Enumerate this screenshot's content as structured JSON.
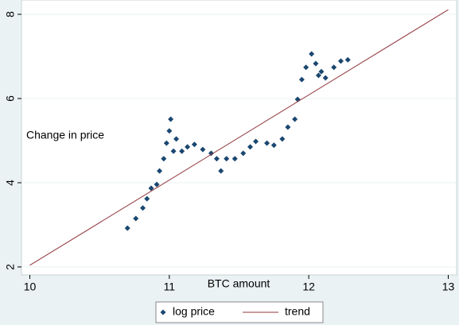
{
  "chart_data": {
    "type": "scatter",
    "x_label": "BTC amount",
    "y_label": "Change in price",
    "xlim": [
      9.94,
      13.06
    ],
    "xticks": [
      10,
      11,
      12,
      13
    ],
    "ylim": [
      1.81,
      8.34
    ],
    "yticks": [
      2,
      4,
      6,
      8
    ],
    "grid": true,
    "legend": "bottom",
    "series": [
      {
        "name": "log price",
        "color": "#1a476f",
        "mode": "markers",
        "x": [
          10.7,
          10.76,
          10.81,
          10.84,
          10.87,
          10.91,
          10.93,
          10.96,
          10.98,
          11.0,
          11.01,
          11.03,
          11.05,
          11.09,
          11.13,
          11.18,
          11.24,
          11.3,
          11.34,
          11.37,
          11.41,
          11.47,
          11.53,
          11.58,
          11.62,
          11.7,
          11.75,
          11.81,
          11.85,
          11.9,
          11.92,
          11.95,
          11.98,
          12.02,
          12.05,
          12.07,
          12.09,
          12.12,
          12.18,
          12.23,
          12.28
        ],
        "values": [
          2.92,
          3.15,
          3.4,
          3.62,
          3.87,
          3.96,
          4.28,
          4.57,
          4.94,
          5.23,
          5.51,
          4.75,
          5.04,
          4.75,
          4.85,
          4.91,
          4.79,
          4.7,
          4.57,
          4.28,
          4.57,
          4.57,
          4.7,
          4.85,
          4.98,
          4.94,
          4.89,
          5.04,
          5.32,
          5.51,
          5.98,
          6.45,
          6.74,
          7.06,
          6.83,
          6.55,
          6.64,
          6.49,
          6.74,
          6.89,
          6.92
        ]
      },
      {
        "name": "trend",
        "color": "#90353b",
        "mode": "line",
        "x": [
          10,
          13
        ],
        "values": [
          2.04,
          8.11
        ]
      }
    ]
  }
}
